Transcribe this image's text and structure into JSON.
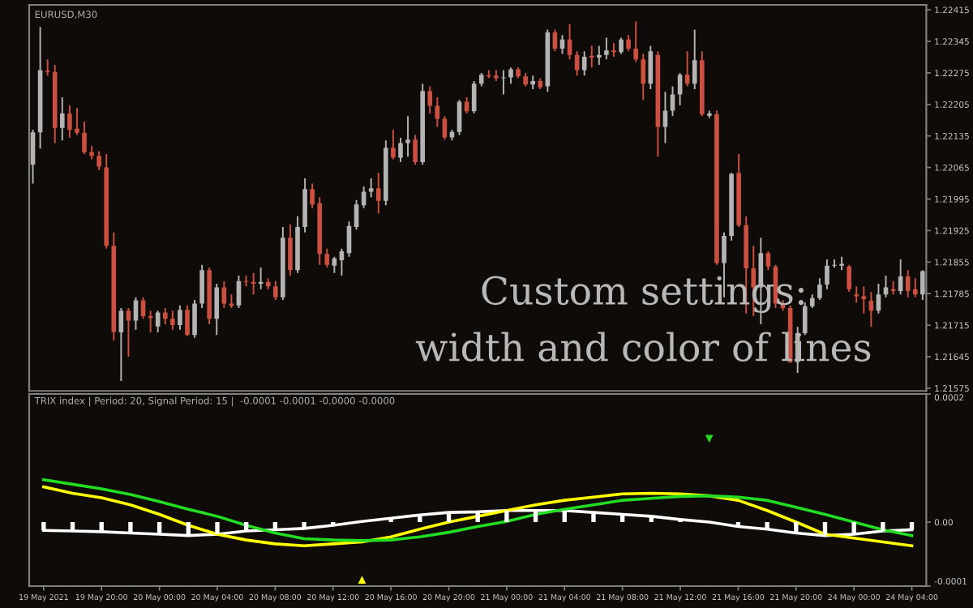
{
  "chart_data": [
    {
      "type": "candlestick",
      "title": "EURUSD,M30",
      "annotations": [
        "Custom settings:",
        "width and color of lines"
      ],
      "categories": [
        null,
        null,
        null,
        null,
        null,
        null,
        null,
        null,
        null,
        null,
        null,
        null,
        null,
        null,
        null,
        null,
        null,
        null,
        null,
        null,
        null,
        null,
        null,
        null,
        null,
        null,
        null,
        null,
        null,
        null,
        null,
        null,
        null,
        null,
        null,
        null,
        null,
        null,
        null,
        null,
        null,
        null,
        null,
        null,
        null,
        null,
        null,
        null,
        null,
        null,
        null,
        null,
        null,
        null,
        null,
        null,
        null,
        null,
        null,
        null,
        null,
        null,
        null,
        null,
        null,
        null,
        null,
        null,
        null,
        null,
        null,
        null,
        null,
        null,
        null,
        null,
        null,
        null,
        null,
        null,
        null,
        null,
        null,
        null,
        null,
        null,
        null,
        null,
        null,
        null,
        null,
        null,
        null,
        null,
        null,
        null,
        null,
        null,
        null,
        null,
        null,
        null,
        null,
        null,
        null,
        null,
        null,
        null,
        null,
        null,
        null,
        null,
        null,
        null,
        null,
        null,
        null,
        null,
        null,
        null,
        null,
        null
      ],
      "ohlc": [
        [
          1.22071,
          1.22149,
          1.22029,
          1.22143
        ],
        [
          1.22143,
          1.22377,
          1.22107,
          1.22281
        ],
        [
          1.2228,
          1.22305,
          1.22269,
          1.22277
        ],
        [
          1.22277,
          1.22293,
          1.22119,
          1.22153
        ],
        [
          1.22153,
          1.22221,
          1.22125,
          1.22185
        ],
        [
          1.22185,
          1.22203,
          1.22131,
          1.22149
        ],
        [
          1.22151,
          1.22197,
          1.22137,
          1.22142
        ],
        [
          1.22142,
          1.22167,
          1.22095,
          1.22099
        ],
        [
          1.22099,
          1.22113,
          1.22083,
          1.22091
        ],
        [
          1.22091,
          1.22101,
          1.22059,
          1.22067
        ],
        [
          1.22065,
          1.22095,
          1.21885,
          1.21891
        ],
        [
          1.21891,
          1.21921,
          1.21681,
          1.217
        ],
        [
          1.21699,
          1.21753,
          1.21591,
          1.21747
        ],
        [
          1.21747,
          1.21753,
          1.21645,
          1.21725
        ],
        [
          1.21725,
          1.21777,
          1.21705,
          1.2177
        ],
        [
          1.2177,
          1.21777,
          1.21729,
          1.21735
        ],
        [
          1.21735,
          1.21747,
          1.21699,
          1.21731
        ],
        [
          1.21712,
          1.21747,
          1.21699,
          1.21743
        ],
        [
          1.21743,
          1.21753,
          1.21717,
          1.21729
        ],
        [
          1.21729,
          1.21747,
          1.21705,
          1.21715
        ],
        [
          1.21715,
          1.21759,
          1.21705,
          1.21749
        ],
        [
          1.21749,
          1.21759,
          1.21691,
          1.21693
        ],
        [
          1.21693,
          1.21771,
          1.21687,
          1.21763
        ],
        [
          1.21763,
          1.21849,
          1.21753,
          1.21837
        ],
        [
          1.21837,
          1.21843,
          1.21717,
          1.21729
        ],
        [
          1.21729,
          1.21807,
          1.21693,
          1.21799
        ],
        [
          1.21799,
          1.21813,
          1.21753,
          1.21763
        ],
        [
          1.21763,
          1.21783,
          1.21753,
          1.21758
        ],
        [
          1.21759,
          1.21825,
          1.21753,
          1.21813
        ],
        [
          1.21813,
          1.21825,
          1.21801,
          1.21811
        ],
        [
          1.21811,
          1.21831,
          1.21783,
          1.21807
        ],
        [
          1.21807,
          1.21843,
          1.21795,
          1.21811
        ],
        [
          1.21811,
          1.21819,
          1.21795,
          1.21801
        ],
        [
          1.21801,
          1.21813,
          1.21771,
          1.21777
        ],
        [
          1.21777,
          1.21933,
          1.21771,
          1.21909
        ],
        [
          1.21909,
          1.21939,
          1.21825,
          1.21837
        ],
        [
          1.21837,
          1.21957,
          1.21831,
          1.21933
        ],
        [
          1.21933,
          1.22041,
          1.21921,
          1.22017
        ],
        [
          1.22017,
          1.22029,
          1.21975,
          1.21983
        ],
        [
          1.21986,
          1.21999,
          1.21849,
          1.21873
        ],
        [
          1.21873,
          1.21885,
          1.21843,
          1.21849
        ],
        [
          1.21847,
          1.21867,
          1.21831,
          1.21863
        ],
        [
          1.21859,
          1.21885,
          1.21825,
          1.21879
        ],
        [
          1.21875,
          1.21945,
          1.21867,
          1.21935
        ],
        [
          1.21933,
          1.21993,
          1.21927,
          1.21983
        ],
        [
          1.21981,
          1.22023,
          1.21975,
          1.22011
        ],
        [
          1.22011,
          1.22041,
          1.21999,
          1.22019
        ],
        [
          1.22019,
          1.22053,
          1.21963,
          1.21991
        ],
        [
          1.21991,
          1.22125,
          1.21981,
          1.22109
        ],
        [
          1.22109,
          1.22149,
          1.22083,
          1.22087
        ],
        [
          1.22087,
          1.22131,
          1.22077,
          1.22119
        ],
        [
          1.22119,
          1.22179,
          1.22089,
          1.22127
        ],
        [
          1.22127,
          1.22137,
          1.22071,
          1.22077
        ],
        [
          1.22077,
          1.22251,
          1.22071,
          1.22235
        ],
        [
          1.22235,
          1.22245,
          1.22185,
          1.22202
        ],
        [
          1.22202,
          1.22221,
          1.22155,
          1.22173
        ],
        [
          1.22173,
          1.22179,
          1.22127,
          1.22132
        ],
        [
          1.22132,
          1.22149,
          1.22125,
          1.22144
        ],
        [
          1.22144,
          1.22215,
          1.22137,
          1.22211
        ],
        [
          1.22211,
          1.22221,
          1.22185,
          1.2219
        ],
        [
          1.2219,
          1.22257,
          1.22185,
          1.22251
        ],
        [
          1.22251,
          1.22275,
          1.22245,
          1.22271
        ],
        [
          1.2227,
          1.22281,
          1.22263,
          1.22267
        ],
        [
          1.22269,
          1.22281,
          1.22257,
          1.22263
        ],
        [
          1.22263,
          1.22281,
          1.22227,
          1.22265
        ],
        [
          1.22265,
          1.22287,
          1.22251,
          1.22283
        ],
        [
          1.22283,
          1.22287,
          1.22263,
          1.22267
        ],
        [
          1.22267,
          1.22275,
          1.22245,
          1.22249
        ],
        [
          1.22249,
          1.22269,
          1.22239,
          1.22257
        ],
        [
          1.22257,
          1.22263,
          1.22239,
          1.22243
        ],
        [
          1.22245,
          1.22371,
          1.22233,
          1.22365
        ],
        [
          1.22365,
          1.22371,
          1.22323,
          1.22329
        ],
        [
          1.22329,
          1.22359,
          1.22317,
          1.22349
        ],
        [
          1.22349,
          1.22383,
          1.22305,
          1.22315
        ],
        [
          1.22315,
          1.22323,
          1.22269,
          1.22281
        ],
        [
          1.22281,
          1.22323,
          1.22269,
          1.22311
        ],
        [
          1.22313,
          1.22335,
          1.22287,
          1.22309
        ],
        [
          1.22309,
          1.22335,
          1.22293,
          1.22315
        ],
        [
          1.22315,
          1.22353,
          1.22305,
          1.22325
        ],
        [
          1.22325,
          1.22341,
          1.22311,
          1.22321
        ],
        [
          1.22321,
          1.22353,
          1.22317,
          1.22349
        ],
        [
          1.22349,
          1.22359,
          1.22323,
          1.22329
        ],
        [
          1.22329,
          1.22389,
          1.22299,
          1.22305
        ],
        [
          1.22305,
          1.22317,
          1.22215,
          1.22251
        ],
        [
          1.22251,
          1.22335,
          1.22239,
          1.22323
        ],
        [
          1.22315,
          1.22323,
          1.22089,
          1.22155
        ],
        [
          1.22155,
          1.22233,
          1.22119,
          1.22191
        ],
        [
          1.22191,
          1.22245,
          1.22179,
          1.22227
        ],
        [
          1.22227,
          1.22275,
          1.22203,
          1.22271
        ],
        [
          1.22271,
          1.22323,
          1.22245,
          1.22251
        ],
        [
          1.22251,
          1.22371,
          1.22239,
          1.22303
        ],
        [
          1.22303,
          1.22323,
          1.22179,
          1.22183
        ],
        [
          1.2218,
          1.22191,
          1.22175,
          1.22185
        ],
        [
          1.22183,
          1.22191,
          1.21849,
          1.21853
        ],
        [
          1.21853,
          1.21921,
          1.21777,
          1.21913
        ],
        [
          1.21913,
          1.22053,
          1.21903,
          1.22051
        ],
        [
          1.22053,
          1.22095,
          1.21933,
          1.21937
        ],
        [
          1.21937,
          1.21957,
          1.21741,
          1.21841
        ],
        [
          1.21841,
          1.21891,
          1.21735,
          1.21799
        ],
        [
          1.21799,
          1.21909,
          1.21717,
          1.21875
        ],
        [
          1.21875,
          1.21879,
          1.21837,
          1.21845
        ],
        [
          1.21845,
          1.21849,
          1.21753,
          1.21763
        ],
        [
          1.21763,
          1.21771,
          1.21747,
          1.21753
        ],
        [
          1.21753,
          1.21759,
          1.21631,
          1.21633
        ],
        [
          1.21633,
          1.21711,
          1.21609,
          1.21697
        ],
        [
          1.21697,
          1.21765,
          1.21693,
          1.21757
        ],
        [
          1.21757,
          1.21783,
          1.21753,
          1.21775
        ],
        [
          1.21775,
          1.21819,
          1.21771,
          1.21805
        ],
        [
          1.21805,
          1.21861,
          1.21795,
          1.21847
        ],
        [
          1.21847,
          1.21861,
          1.21843,
          1.21849
        ],
        [
          1.21847,
          1.21867,
          1.21837,
          1.21851
        ],
        [
          1.21845,
          1.21849,
          1.21789,
          1.21795
        ],
        [
          1.21783,
          1.21801,
          1.21765,
          1.21779
        ],
        [
          1.21779,
          1.21801,
          1.21741,
          1.21773
        ],
        [
          1.21769,
          1.21789,
          1.21711,
          1.21747
        ],
        [
          1.21747,
          1.21807,
          1.21741,
          1.21783
        ],
        [
          1.21783,
          1.21825,
          1.21777,
          1.21799
        ],
        [
          1.21795,
          1.21813,
          1.21783,
          1.21791
        ],
        [
          1.21791,
          1.21861,
          1.21783,
          1.21823
        ],
        [
          1.21823,
          1.21837,
          1.21777,
          1.21791
        ],
        [
          1.21795,
          1.21819,
          1.21777,
          1.21783
        ],
        [
          1.21783,
          1.21837,
          1.21771,
          1.21835
        ]
      ],
      "colors": [
        "#b4b4b4",
        "#b4b4b4",
        "#cc5040",
        "#cc5040",
        "#b4b4b4",
        "#cc5040",
        "#cc5040",
        "#cc5040",
        "#cc5040",
        "#cc5040",
        "#cc5040",
        "#cc5040",
        "#b4b4b4",
        "#cc5040",
        "#b4b4b4",
        "#cc5040",
        "#cc5040",
        "#b4b4b4",
        "#cc5040",
        "#cc5040",
        "#b4b4b4",
        "#cc5040",
        "#b4b4b4",
        "#b4b4b4",
        "#cc5040",
        "#b4b4b4",
        "#cc5040",
        "#cc5040",
        "#b4b4b4",
        "#cc5040",
        "#cc5040",
        "#b4b4b4",
        "#cc5040",
        "#cc5040",
        "#b4b4b4",
        "#cc5040",
        "#b4b4b4",
        "#b4b4b4",
        "#cc5040",
        "#cc5040",
        "#cc5040",
        "#b4b4b4",
        "#b4b4b4",
        "#b4b4b4",
        "#b4b4b4",
        "#b4b4b4",
        "#b4b4b4",
        "#cc5040",
        "#b4b4b4",
        "#cc5040",
        "#b4b4b4",
        "#b4b4b4",
        "#cc5040",
        "#b4b4b4",
        "#cc5040",
        "#cc5040",
        "#cc5040",
        "#b4b4b4",
        "#b4b4b4",
        "#cc5040",
        "#b4b4b4",
        "#b4b4b4",
        "#cc5040",
        "#cc5040",
        "#b4b4b4",
        "#b4b4b4",
        "#cc5040",
        "#cc5040",
        "#b4b4b4",
        "#cc5040",
        "#b4b4b4",
        "#cc5040",
        "#b4b4b4",
        "#cc5040",
        "#cc5040",
        "#b4b4b4",
        "#cc5040",
        "#b4b4b4",
        "#b4b4b4",
        "#cc5040",
        "#b4b4b4",
        "#cc5040",
        "#cc5040",
        "#cc5040",
        "#b4b4b4",
        "#cc5040",
        "#b4b4b4",
        "#b4b4b4",
        "#b4b4b4",
        "#cc5040",
        "#b4b4b4",
        "#cc5040",
        "#b4b4b4",
        "#cc5040",
        "#b4b4b4",
        "#b4b4b4",
        "#cc5040",
        "#cc5040",
        "#cc5040",
        "#b4b4b4",
        "#cc5040",
        "#cc5040",
        "#cc5040",
        "#cc5040",
        "#b4b4b4",
        "#b4b4b4",
        "#b4b4b4",
        "#b4b4b4",
        "#b4b4b4",
        "#b4b4b4",
        "#b4b4b4",
        "#cc5040",
        "#cc5040",
        "#cc5040",
        "#cc5040",
        "#b4b4b4",
        "#b4b4b4",
        "#cc5040",
        "#b4b4b4",
        "#cc5040",
        "#cc5040",
        "#b4b4b4"
      ],
      "ylim": [
        1.21569,
        1.22426
      ],
      "yticks": [
        1.22415,
        1.22345,
        1.22275,
        1.22205,
        1.22135,
        1.22065,
        1.21995,
        1.21925,
        1.21855,
        1.21785,
        1.21715,
        1.21645,
        1.21575
      ],
      "tick_labels": "y",
      "grid": false,
      "legend": false
    },
    {
      "type": "line",
      "title": "TRIX index | Period: 20, Signal Period: 15 |  -0.0001 -0.0001 -0.0000 -0.0000",
      "categories": [
        "19 May 2021",
        null,
        "19 May 20:00",
        null,
        "20 May 00:00",
        null,
        "20 May 04:00",
        null,
        "20 May 08:00",
        null,
        "20 May 12:00",
        null,
        "20 May 16:00",
        null,
        "20 May 20:00",
        null,
        "21 May 00:00",
        null,
        "21 May 04:00",
        null,
        "21 May 08:00",
        null,
        "21 May 12:00",
        null,
        "21 May 16:00",
        null,
        "21 May 20:00",
        null,
        "24 May 00:00",
        null,
        "24 May 04:00"
      ],
      "series": [
        {
          "type": "bar",
          "color": "#ffffff",
          "values": [
            -1.3e-05,
            -1.4e-05,
            -1.5e-05,
            -1.7e-05,
            -1.9e-05,
            -2.1e-05,
            -1.9e-05,
            -1.4e-05,
            -1.2e-05,
            -1e-05,
            -5e-06,
            1e-06,
            6e-06,
            1.1e-05,
            1.5e-05,
            1.6e-05,
            1.8e-05,
            1.8e-05,
            1.8e-05,
            1.5e-05,
            1.2e-05,
            9e-06,
            4e-06,
            0,
            -7e-06,
            -1.1e-05,
            -1.7e-05,
            -2.1e-05,
            -1.9e-05,
            -1.4e-05,
            -1.2e-05
          ]
        },
        {
          "type": "line",
          "color": "#ffffff",
          "values": [
            -1.3e-05,
            -1.4e-05,
            -1.5e-05,
            -1.7e-05,
            -1.9e-05,
            -2.1e-05,
            -1.9e-05,
            -1.4e-05,
            -1.2e-05,
            -1e-05,
            -5e-06,
            1e-06,
            6e-06,
            1.1e-05,
            1.5e-05,
            1.6e-05,
            1.8e-05,
            1.8e-05,
            1.8e-05,
            1.5e-05,
            1.2e-05,
            9e-06,
            4e-06,
            0,
            -7e-06,
            -1.1e-05,
            -1.7e-05,
            -2.1e-05,
            -1.9e-05,
            -1.4e-05,
            -1.2e-05
          ]
        },
        {
          "type": "line",
          "color": "#ffff00",
          "values": [
            5.5e-05,
            4.5e-05,
            3.8e-05,
            2.7e-05,
            1.2e-05,
            -5e-06,
            -1.9e-05,
            -2.8e-05,
            -3.4e-05,
            -3.7e-05,
            -3.4e-05,
            -3.1e-05,
            -2.3e-05,
            -1.1e-05,
            0,
            9e-06,
            1.8e-05,
            2.7e-05,
            3.4e-05,
            3.9e-05,
            4.4e-05,
            4.5e-05,
            4.4e-05,
            4.1e-05,
            3.4e-05,
            1.8e-05,
            0,
            -1.9e-05,
            -2.5e-05,
            -3.1e-05,
            -3.7e-05
          ]
        },
        {
          "type": "line",
          "color": "#22dd22",
          "values": [
            6.6e-05,
            5.9e-05,
            5.2e-05,
            4.3e-05,
            3.2e-05,
            2e-05,
            9e-06,
            -5e-06,
            -1.7e-05,
            -2.6e-05,
            -2.8e-05,
            -2.9e-05,
            -2.8e-05,
            -2.3e-05,
            -1.6e-05,
            -7e-06,
            1e-06,
            1.2e-05,
            2e-05,
            2.7e-05,
            3.4e-05,
            3.7e-05,
            4e-05,
            4.1e-05,
            3.9e-05,
            3.4e-05,
            2.3e-05,
            1.2e-05,
            0,
            -1.2e-05,
            -2.1e-05
          ]
        },
        {
          "type": "scatter",
          "color": "#ffff00",
          "marker": "triangle",
          "values": [
            null,
            null,
            null,
            null,
            null,
            null,
            null,
            null,
            null,
            null,
            null,
            -9e-05,
            null,
            null,
            null,
            null,
            null,
            null,
            null,
            null,
            null,
            null,
            null,
            null,
            null,
            null,
            null,
            null,
            null,
            null,
            null
          ]
        },
        {
          "type": "scatter",
          "color": "#22dd22",
          "marker": "triangle",
          "values": [
            null,
            null,
            null,
            null,
            null,
            null,
            null,
            null,
            null,
            null,
            null,
            null,
            null,
            null,
            null,
            null,
            null,
            null,
            null,
            null,
            null,
            null,
            null,
            0.00013,
            null,
            null,
            null,
            null,
            null,
            null,
            null
          ]
        }
      ],
      "ylim": [
        -0.0001,
        0.0002
      ],
      "yticks": [
        0.0002,
        {
          "value": 0,
          "label": "0.00"
        },
        -0.0001
      ],
      "grid": false,
      "legend": false
    }
  ]
}
